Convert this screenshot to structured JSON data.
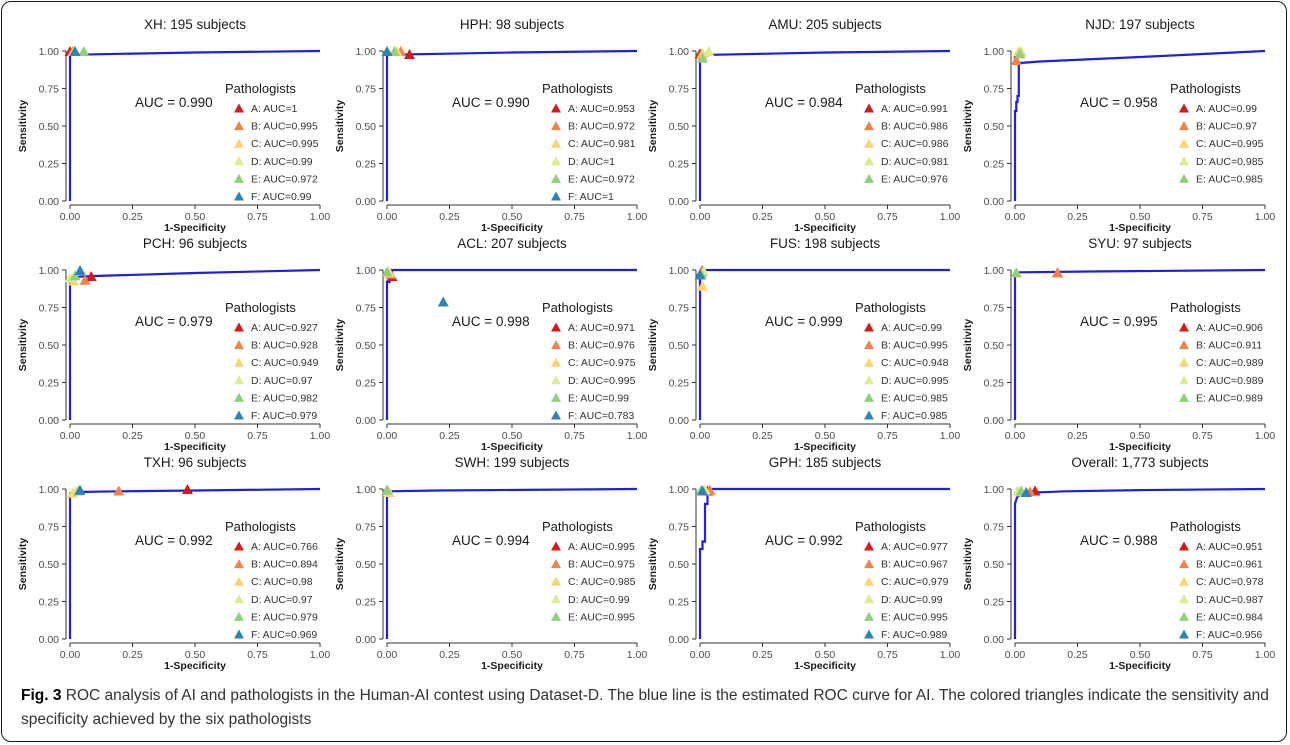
{
  "figure": {
    "caption_label": "Fig. 3",
    "caption_text": "ROC analysis of AI and pathologists in the Human-AI contest using Dataset-D. The blue line is the estimated ROC curve for AI. The colored triangles indicate the sensitivity and specificity achieved by the six pathologists"
  },
  "colors": {
    "roc_line": "#1f1fe0",
    "A": "#d7191c",
    "B": "#f0824a",
    "C": "#fcd36e",
    "D": "#d9ee8c",
    "E": "#8fd17a",
    "F": "#2b83ba"
  },
  "chart_data": [
    {
      "type": "line",
      "title": "XH: 195 subjects",
      "xlabel": "1-Specificity",
      "ylabel": "Sensitivity",
      "xlim": [
        0,
        1
      ],
      "ylim": [
        0,
        1
      ],
      "xticks": [
        "0.00",
        "0.25",
        "0.50",
        "0.75",
        "1.00"
      ],
      "yticks": [
        "0.00",
        "0.25",
        "0.50",
        "0.75",
        "1.00"
      ],
      "auc_label": "AUC = 0.990",
      "legend_title": "Pathologists",
      "roc": [
        [
          0,
          0
        ],
        [
          0,
          0.97
        ],
        [
          0.01,
          0.975
        ],
        [
          0.1,
          0.978
        ],
        [
          0.5,
          0.99
        ],
        [
          1,
          1
        ]
      ],
      "pathologists": [
        {
          "key": "A",
          "label": "A: AUC=1",
          "x": 0.0,
          "y": 1.0
        },
        {
          "key": "B",
          "label": "B: AUC=0.995",
          "x": 0.01,
          "y": 1.0
        },
        {
          "key": "C",
          "label": "C: AUC=0.995",
          "x": 0.015,
          "y": 1.0
        },
        {
          "key": "D",
          "label": "D: AUC=0.99",
          "x": 0.02,
          "y": 1.0
        },
        {
          "key": "E",
          "label": "E: AUC=0.972",
          "x": 0.055,
          "y": 1.0
        },
        {
          "key": "F",
          "label": "F: AUC=0.99",
          "x": 0.02,
          "y": 1.0
        }
      ]
    },
    {
      "type": "line",
      "title": "HPH: 98 subjects",
      "xlabel": "1-Specificity",
      "ylabel": "Sensitivity",
      "xlim": [
        0,
        1
      ],
      "ylim": [
        0,
        1
      ],
      "xticks": [
        "0.00",
        "0.25",
        "0.50",
        "0.75",
        "1.00"
      ],
      "yticks": [
        "0.00",
        "0.25",
        "0.50",
        "0.75",
        "1.00"
      ],
      "auc_label": "AUC = 0.990",
      "legend_title": "Pathologists",
      "roc": [
        [
          0,
          0
        ],
        [
          0,
          0.97
        ],
        [
          0.01,
          0.975
        ],
        [
          0.1,
          0.978
        ],
        [
          0.5,
          0.99
        ],
        [
          1,
          1
        ]
      ],
      "pathologists": [
        {
          "key": "A",
          "label": "A: AUC=0.953",
          "x": 0.09,
          "y": 0.98
        },
        {
          "key": "B",
          "label": "B: AUC=0.972",
          "x": 0.055,
          "y": 1.0
        },
        {
          "key": "C",
          "label": "C: AUC=0.981",
          "x": 0.04,
          "y": 1.0
        },
        {
          "key": "D",
          "label": "D: AUC=1",
          "x": 0.0,
          "y": 1.0
        },
        {
          "key": "E",
          "label": "E: AUC=0.972",
          "x": 0.03,
          "y": 1.0
        },
        {
          "key": "F",
          "label": "F: AUC=1",
          "x": 0.0,
          "y": 1.0
        }
      ]
    },
    {
      "type": "line",
      "title": "AMU: 205 subjects",
      "xlabel": "1-Specificity",
      "ylabel": "Sensitivity",
      "xlim": [
        0,
        1
      ],
      "ylim": [
        0,
        1
      ],
      "xticks": [
        "0.00",
        "0.25",
        "0.50",
        "0.75",
        "1.00"
      ],
      "yticks": [
        "0.00",
        "0.25",
        "0.50",
        "0.75",
        "1.00"
      ],
      "auc_label": "AUC = 0.984",
      "legend_title": "Pathologists",
      "roc": [
        [
          0,
          0
        ],
        [
          0,
          0.96
        ],
        [
          0.01,
          0.97
        ],
        [
          0.05,
          0.975
        ],
        [
          0.5,
          0.99
        ],
        [
          1,
          1
        ]
      ],
      "pathologists": [
        {
          "key": "A",
          "label": "A: AUC=0.991",
          "x": 0.0,
          "y": 0.985
        },
        {
          "key": "B",
          "label": "B: AUC=0.986",
          "x": 0.005,
          "y": 0.98
        },
        {
          "key": "C",
          "label": "C: AUC=0.986",
          "x": 0.01,
          "y": 0.985
        },
        {
          "key": "D",
          "label": "D: AUC=0.981",
          "x": 0.035,
          "y": 1.0
        },
        {
          "key": "E",
          "label": "E: AUC=0.976",
          "x": 0.01,
          "y": 0.955
        }
      ]
    },
    {
      "type": "line",
      "title": "NJD: 197 subjects",
      "xlabel": "1-Specificity",
      "ylabel": "Sensitivity",
      "xlim": [
        0,
        1
      ],
      "ylim": [
        0,
        1
      ],
      "xticks": [
        "0.00",
        "0.25",
        "0.50",
        "0.75",
        "1.00"
      ],
      "yticks": [
        "0.00",
        "0.25",
        "0.50",
        "0.75",
        "1.00"
      ],
      "auc_label": "AUC = 0.958",
      "legend_title": "Pathologists",
      "roc": [
        [
          0,
          0
        ],
        [
          0,
          0.6
        ],
        [
          0.005,
          0.6
        ],
        [
          0.005,
          0.66
        ],
        [
          0.01,
          0.66
        ],
        [
          0.01,
          0.7
        ],
        [
          0.015,
          0.7
        ],
        [
          0.015,
          0.92
        ],
        [
          0.02,
          0.92
        ],
        [
          0.1,
          0.93
        ],
        [
          0.5,
          0.96
        ],
        [
          1,
          1
        ]
      ],
      "pathologists": [
        {
          "key": "A",
          "label": "A: AUC=0.99",
          "x": 0.015,
          "y": 0.985
        },
        {
          "key": "B",
          "label": "B: AUC=0.97",
          "x": 0.005,
          "y": 0.94
        },
        {
          "key": "C",
          "label": "C: AUC=0.995",
          "x": 0.015,
          "y": 1.0
        },
        {
          "key": "D",
          "label": "D: AUC=0.985",
          "x": 0.025,
          "y": 1.0
        },
        {
          "key": "E",
          "label": "E: AUC=0.985",
          "x": 0.02,
          "y": 0.985
        }
      ]
    },
    {
      "type": "line",
      "title": "PCH: 96 subjects",
      "xlabel": "1-Specificity",
      "ylabel": "Sensitivity",
      "xlim": [
        0,
        1
      ],
      "ylim": [
        0,
        1
      ],
      "xticks": [
        "0.00",
        "0.25",
        "0.50",
        "0.75",
        "1.00"
      ],
      "yticks": [
        "0.00",
        "0.25",
        "0.50",
        "0.75",
        "1.00"
      ],
      "auc_label": "AUC = 0.979",
      "legend_title": "Pathologists",
      "roc": [
        [
          0,
          0
        ],
        [
          0,
          0.95
        ],
        [
          0.02,
          0.955
        ],
        [
          0.1,
          0.96
        ],
        [
          0.5,
          0.98
        ],
        [
          1,
          1
        ]
      ],
      "pathologists": [
        {
          "key": "A",
          "label": "A: AUC=0.927",
          "x": 0.085,
          "y": 0.96
        },
        {
          "key": "B",
          "label": "B: AUC=0.928",
          "x": 0.06,
          "y": 0.935
        },
        {
          "key": "C",
          "label": "C: AUC=0.949",
          "x": 0.015,
          "y": 0.93
        },
        {
          "key": "D",
          "label": "D: AUC=0.97",
          "x": 0.0,
          "y": 0.95
        },
        {
          "key": "E",
          "label": "E: AUC=0.982",
          "x": 0.02,
          "y": 0.965
        },
        {
          "key": "F",
          "label": "F: AUC=0.979",
          "x": 0.04,
          "y": 1.0
        }
      ]
    },
    {
      "type": "line",
      "title": "ACL: 207 subjects",
      "xlabel": "1-Specificity",
      "ylabel": "Sensitivity",
      "xlim": [
        0,
        1
      ],
      "ylim": [
        0,
        1
      ],
      "xticks": [
        "0.00",
        "0.25",
        "0.50",
        "0.75",
        "1.00"
      ],
      "yticks": [
        "0.00",
        "0.25",
        "0.50",
        "0.75",
        "1.00"
      ],
      "auc_label": "AUC = 0.998",
      "legend_title": "Pathologists",
      "roc": [
        [
          0,
          0
        ],
        [
          0,
          0.92
        ],
        [
          0.01,
          0.92
        ],
        [
          0.01,
          0.95
        ],
        [
          0.02,
          0.95
        ],
        [
          0.02,
          1
        ],
        [
          1,
          1
        ]
      ],
      "pathologists": [
        {
          "key": "A",
          "label": "A: AUC=0.971",
          "x": 0.02,
          "y": 0.96
        },
        {
          "key": "B",
          "label": "B: AUC=0.976",
          "x": 0.015,
          "y": 0.975
        },
        {
          "key": "C",
          "label": "C: AUC=0.975",
          "x": 0.01,
          "y": 0.985
        },
        {
          "key": "D",
          "label": "D: AUC=0.995",
          "x": 0.005,
          "y": 0.99
        },
        {
          "key": "E",
          "label": "E: AUC=0.99",
          "x": 0.0,
          "y": 0.99
        },
        {
          "key": "F",
          "label": "F: AUC=0.783",
          "x": 0.225,
          "y": 0.79
        }
      ]
    },
    {
      "type": "line",
      "title": "FUS: 198 subjects",
      "xlabel": "1-Specificity",
      "ylabel": "Sensitivity",
      "xlim": [
        0,
        1
      ],
      "ylim": [
        0,
        1
      ],
      "xticks": [
        "0.00",
        "0.25",
        "0.50",
        "0.75",
        "1.00"
      ],
      "yticks": [
        "0.00",
        "0.25",
        "0.50",
        "0.75",
        "1.00"
      ],
      "auc_label": "AUC = 0.999",
      "legend_title": "Pathologists",
      "roc": [
        [
          0,
          0
        ],
        [
          0,
          0.97
        ],
        [
          0.01,
          0.97
        ],
        [
          0.01,
          1
        ],
        [
          1,
          1
        ]
      ],
      "pathologists": [
        {
          "key": "A",
          "label": "A: AUC=0.99",
          "x": 0.005,
          "y": 0.99
        },
        {
          "key": "B",
          "label": "B: AUC=0.995",
          "x": 0.01,
          "y": 1.0
        },
        {
          "key": "C",
          "label": "C: AUC=0.948",
          "x": 0.01,
          "y": 0.895
        },
        {
          "key": "D",
          "label": "D: AUC=0.995",
          "x": 0.015,
          "y": 0.995
        },
        {
          "key": "E",
          "label": "E: AUC=0.985",
          "x": 0.005,
          "y": 0.975
        },
        {
          "key": "F",
          "label": "F: AUC=0.985",
          "x": 0.0,
          "y": 0.97
        }
      ]
    },
    {
      "type": "line",
      "title": "SYU: 97 subjects",
      "xlabel": "1-Specificity",
      "ylabel": "Sensitivity",
      "xlim": [
        0,
        1
      ],
      "ylim": [
        0,
        1
      ],
      "xticks": [
        "0.00",
        "0.25",
        "0.50",
        "0.75",
        "1.00"
      ],
      "yticks": [
        "0.00",
        "0.25",
        "0.50",
        "0.75",
        "1.00"
      ],
      "auc_label": "AUC = 0.995",
      "legend_title": "Pathologists",
      "roc": [
        [
          0,
          0
        ],
        [
          0,
          0.98
        ],
        [
          0.02,
          0.985
        ],
        [
          0.3,
          0.99
        ],
        [
          1,
          1
        ]
      ],
      "pathologists": [
        {
          "key": "A",
          "label": "A: AUC=0.906",
          "x": 0.17,
          "y": 0.985
        },
        {
          "key": "B",
          "label": "B: AUC=0.911",
          "x": 0.17,
          "y": 0.985
        },
        {
          "key": "C",
          "label": "C: AUC=0.989",
          "x": 0.005,
          "y": 0.985
        },
        {
          "key": "D",
          "label": "D: AUC=0.989",
          "x": 0.005,
          "y": 0.985
        },
        {
          "key": "E",
          "label": "E: AUC=0.989",
          "x": 0.005,
          "y": 0.985
        }
      ]
    },
    {
      "type": "line",
      "title": "TXH: 96 subjects",
      "xlabel": "1-Specificity",
      "ylabel": "Sensitivity",
      "xlim": [
        0,
        1
      ],
      "ylim": [
        0,
        1
      ],
      "xticks": [
        "0.00",
        "0.25",
        "0.50",
        "0.75",
        "1.00"
      ],
      "yticks": [
        "0.00",
        "0.25",
        "0.50",
        "0.75",
        "1.00"
      ],
      "auc_label": "AUC = 0.992",
      "legend_title": "Pathologists",
      "roc": [
        [
          0,
          0
        ],
        [
          0,
          0.97
        ],
        [
          0.02,
          0.98
        ],
        [
          0.2,
          0.985
        ],
        [
          0.5,
          0.99
        ],
        [
          1,
          1
        ]
      ],
      "pathologists": [
        {
          "key": "A",
          "label": "A: AUC=0.766",
          "x": 0.47,
          "y": 1.0
        },
        {
          "key": "B",
          "label": "B: AUC=0.894",
          "x": 0.195,
          "y": 0.99
        },
        {
          "key": "C",
          "label": "C: AUC=0.98",
          "x": 0.01,
          "y": 0.975
        },
        {
          "key": "D",
          "label": "D: AUC=0.97",
          "x": 0.025,
          "y": 0.99
        },
        {
          "key": "E",
          "label": "E: AUC=0.979",
          "x": 0.035,
          "y": 0.99
        },
        {
          "key": "F",
          "label": "F: AUC=0.969",
          "x": 0.04,
          "y": 0.995
        }
      ]
    },
    {
      "type": "line",
      "title": "SWH: 199 subjects",
      "xlabel": "1-Specificity",
      "ylabel": "Sensitivity",
      "xlim": [
        0,
        1
      ],
      "ylim": [
        0,
        1
      ],
      "xticks": [
        "0.00",
        "0.25",
        "0.50",
        "0.75",
        "1.00"
      ],
      "yticks": [
        "0.00",
        "0.25",
        "0.50",
        "0.75",
        "1.00"
      ],
      "auc_label": "AUC = 0.994",
      "legend_title": "Pathologists",
      "roc": [
        [
          0,
          0
        ],
        [
          0,
          0.98
        ],
        [
          0.01,
          0.985
        ],
        [
          0.2,
          0.99
        ],
        [
          1,
          1
        ]
      ],
      "pathologists": [
        {
          "key": "A",
          "label": "A: AUC=0.995",
          "x": 0.0,
          "y": 0.995
        },
        {
          "key": "B",
          "label": "B: AUC=0.975",
          "x": 0.005,
          "y": 0.99
        },
        {
          "key": "C",
          "label": "C: AUC=0.985",
          "x": 0.01,
          "y": 0.98
        },
        {
          "key": "D",
          "label": "D: AUC=0.99",
          "x": 0.005,
          "y": 0.99
        },
        {
          "key": "E",
          "label": "E: AUC=0.995",
          "x": 0.0,
          "y": 0.995
        }
      ]
    },
    {
      "type": "line",
      "title": "GPH: 185 subjects",
      "xlabel": "1-Specificity",
      "ylabel": "Sensitivity",
      "xlim": [
        0,
        1
      ],
      "ylim": [
        0,
        1
      ],
      "xticks": [
        "0.00",
        "0.25",
        "0.50",
        "0.75",
        "1.00"
      ],
      "yticks": [
        "0.00",
        "0.25",
        "0.50",
        "0.75",
        "1.00"
      ],
      "auc_label": "AUC = 0.992",
      "legend_title": "Pathologists",
      "roc": [
        [
          0,
          0
        ],
        [
          0,
          0.6
        ],
        [
          0.01,
          0.6
        ],
        [
          0.01,
          0.65
        ],
        [
          0.02,
          0.65
        ],
        [
          0.02,
          0.9
        ],
        [
          0.03,
          0.9
        ],
        [
          0.03,
          1
        ],
        [
          1,
          1
        ]
      ],
      "pathologists": [
        {
          "key": "A",
          "label": "A: AUC=0.977",
          "x": 0.03,
          "y": 0.99
        },
        {
          "key": "B",
          "label": "B: AUC=0.967",
          "x": 0.04,
          "y": 0.995
        },
        {
          "key": "C",
          "label": "C: AUC=0.979",
          "x": 0.015,
          "y": 0.99
        },
        {
          "key": "D",
          "label": "D: AUC=0.99",
          "x": 0.02,
          "y": 1.0
        },
        {
          "key": "E",
          "label": "E: AUC=0.995",
          "x": 0.005,
          "y": 0.995
        },
        {
          "key": "F",
          "label": "F: AUC=0.989",
          "x": 0.01,
          "y": 0.99
        }
      ]
    },
    {
      "type": "line",
      "title": "Overall: 1,773 subjects",
      "xlabel": "1-Specificity",
      "ylabel": "Sensitivity",
      "xlim": [
        0,
        1
      ],
      "ylim": [
        0,
        1
      ],
      "xticks": [
        "0.00",
        "0.25",
        "0.50",
        "0.75",
        "1.00"
      ],
      "yticks": [
        "0.00",
        "0.25",
        "0.50",
        "0.75",
        "1.00"
      ],
      "auc_label": "AUC = 0.988",
      "legend_title": "Pathologists",
      "roc": [
        [
          0,
          0
        ],
        [
          0,
          0.9
        ],
        [
          0.005,
          0.93
        ],
        [
          0.01,
          0.95
        ],
        [
          0.02,
          0.96
        ],
        [
          0.05,
          0.975
        ],
        [
          0.2,
          0.985
        ],
        [
          0.5,
          0.993
        ],
        [
          1,
          1
        ]
      ],
      "pathologists": [
        {
          "key": "A",
          "label": "A: AUC=0.951",
          "x": 0.08,
          "y": 0.99
        },
        {
          "key": "B",
          "label": "B: AUC=0.961",
          "x": 0.06,
          "y": 0.985
        },
        {
          "key": "C",
          "label": "C: AUC=0.978",
          "x": 0.02,
          "y": 0.985
        },
        {
          "key": "D",
          "label": "D: AUC=0.987",
          "x": 0.01,
          "y": 0.99
        },
        {
          "key": "E",
          "label": "E: AUC=0.984",
          "x": 0.025,
          "y": 0.99
        },
        {
          "key": "F",
          "label": "F: AUC=0.956",
          "x": 0.045,
          "y": 0.98
        }
      ]
    }
  ]
}
